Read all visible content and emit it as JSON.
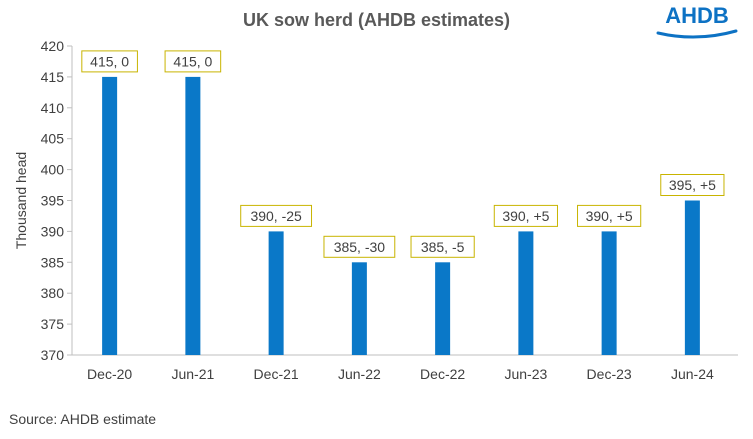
{
  "logo": {
    "text": "AHDB",
    "color": "#0d72c4"
  },
  "source": "Source: AHDB estimate",
  "chart_data": {
    "type": "bar",
    "title": "UK sow herd (AHDB estimates)",
    "xlabel": "",
    "ylabel": "Thousand  head",
    "categories": [
      "Dec-20",
      "Jun-21",
      "Dec-21",
      "Jun-22",
      "Dec-22",
      "Jun-23",
      "Dec-23",
      "Jun-24"
    ],
    "series": [
      {
        "values": [
          415,
          415,
          390,
          385,
          385,
          390,
          390,
          395
        ]
      }
    ],
    "data_labels": [
      "415, 0",
      "415, 0",
      "390, -25",
      "385, -30",
      "385, -5",
      "390, +5",
      "390, +5",
      "395, +5"
    ],
    "ylim": [
      370,
      420
    ],
    "yticks": [
      370,
      375,
      380,
      385,
      390,
      395,
      400,
      405,
      410,
      415,
      420
    ],
    "bar_color": "#0a78c8",
    "label_border_color": "#c8b400",
    "grid": false,
    "legend": "none"
  }
}
